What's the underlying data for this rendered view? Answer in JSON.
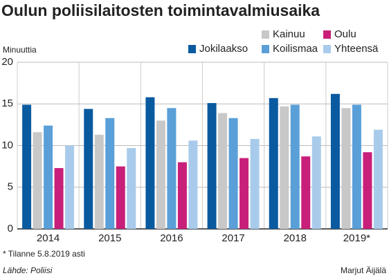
{
  "chart_data": {
    "type": "bar",
    "title": "Oulun poliisilaitosten toimintavalmiusaika",
    "y_label": "Minuuttia",
    "categories": [
      "2014",
      "2015",
      "2016",
      "2017",
      "2018",
      "2019*"
    ],
    "series": [
      {
        "name": "Jokilaakso",
        "color": "#0a5aa0",
        "values": [
          14.9,
          14.4,
          15.8,
          15.1,
          15.7,
          16.2
        ]
      },
      {
        "name": "Kainuu",
        "color": "#c8c8c8",
        "values": [
          11.6,
          11.3,
          13.0,
          13.9,
          14.7,
          14.5
        ]
      },
      {
        "name": "Koilismaa",
        "color": "#5a9fd8",
        "values": [
          12.4,
          13.3,
          14.5,
          13.3,
          14.9,
          14.9
        ]
      },
      {
        "name": "Oulu",
        "color": "#c8207a",
        "values": [
          7.3,
          7.5,
          8.0,
          8.5,
          8.7,
          9.2
        ]
      },
      {
        "name": "Yhteensä",
        "color": "#a9cbeb",
        "values": [
          10.0,
          9.7,
          10.6,
          10.8,
          11.1,
          11.9
        ]
      }
    ],
    "ylim": [
      0,
      20
    ],
    "yticks": [
      0,
      5,
      10,
      15,
      20
    ],
    "grid": true,
    "footnote": "* Tilanne 5.8.2019 asti",
    "source": "Lähde: Poliisi",
    "author": "Marjut Äijälä"
  }
}
